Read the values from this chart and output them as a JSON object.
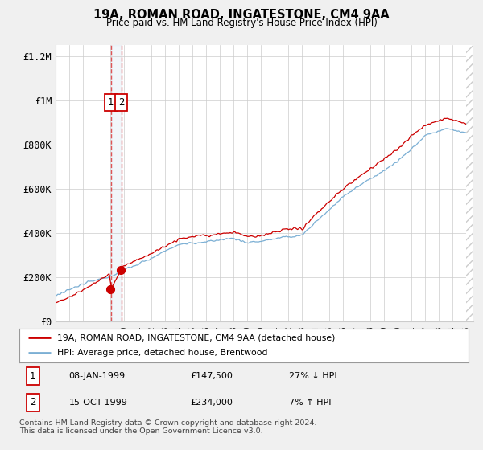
{
  "title": "19A, ROMAN ROAD, INGATESTONE, CM4 9AA",
  "subtitle": "Price paid vs. HM Land Registry's House Price Index (HPI)",
  "red_label": "19A, ROMAN ROAD, INGATESTONE, CM4 9AA (detached house)",
  "blue_label": "HPI: Average price, detached house, Brentwood",
  "transactions": [
    {
      "id": 1,
      "date": "08-JAN-1999",
      "price": 147500,
      "hpi_change": "27% ↓ HPI"
    },
    {
      "id": 2,
      "date": "15-OCT-1999",
      "price": 234000,
      "hpi_change": "7% ↑ HPI"
    }
  ],
  "footnote": "Contains HM Land Registry data © Crown copyright and database right 2024.\nThis data is licensed under the Open Government Licence v3.0.",
  "ylim": [
    0,
    1250000
  ],
  "yticks": [
    0,
    200000,
    400000,
    600000,
    800000,
    1000000,
    1200000
  ],
  "ytick_labels": [
    "£0",
    "£200K",
    "£400K",
    "£600K",
    "£800K",
    "£1M",
    "£1.2M"
  ],
  "background_color": "#f0f0f0",
  "plot_bg": "#ffffff",
  "red_color": "#cc0000",
  "blue_color": "#7bafd4",
  "dashed_color": "#dd4444",
  "t1_year": 1999.04,
  "t2_year": 1999.79,
  "t1_price": 147500,
  "t2_price": 234000,
  "x_start_year": 1995,
  "x_end_year": 2025
}
